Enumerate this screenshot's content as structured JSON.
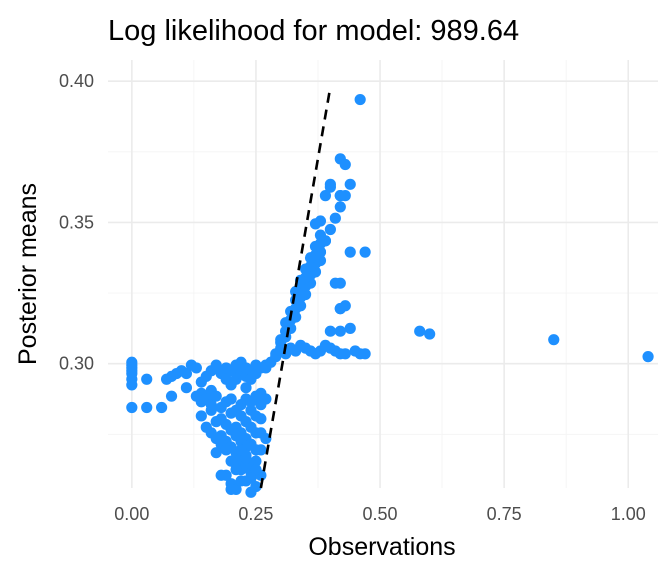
{
  "chart_data": {
    "type": "scatter",
    "title": "Log likelihood for model: 989.64",
    "xlabel": "Observations",
    "ylabel": "Posterior means",
    "xlim": [
      -0.048,
      1.06
    ],
    "ylim": [
      0.256,
      0.4075
    ],
    "x_ticks": [
      0.0,
      0.25,
      0.5,
      0.75,
      1.0
    ],
    "x_tick_labels": [
      "0.00",
      "0.25",
      "0.50",
      "0.75",
      "1.00"
    ],
    "y_ticks": [
      0.3,
      0.35,
      0.4
    ],
    "y_tick_labels": [
      "0.30",
      "0.35",
      "0.40"
    ],
    "grid": true,
    "point_color": "#1e90ff",
    "reference_line": {
      "style": "dashed",
      "color": "#000000",
      "from": [
        0.26,
        0.256
      ],
      "to": [
        0.4,
        0.398
      ]
    },
    "series": [
      {
        "name": "points",
        "x": [
          0.0,
          0.0,
          0.0,
          0.0,
          0.0,
          0.0,
          0.0,
          0.0,
          0.03,
          0.03,
          0.06,
          0.07,
          0.08,
          0.08,
          0.09,
          0.1,
          0.11,
          0.11,
          0.12,
          0.13,
          0.14,
          0.14,
          0.15,
          0.16,
          0.16,
          0.17,
          0.18,
          0.19,
          0.19,
          0.2,
          0.2,
          0.21,
          0.21,
          0.22,
          0.22,
          0.23,
          0.23,
          0.23,
          0.24,
          0.24,
          0.25,
          0.25,
          0.26,
          0.27,
          0.13,
          0.14,
          0.15,
          0.16,
          0.17,
          0.18,
          0.19,
          0.2,
          0.21,
          0.22,
          0.23,
          0.24,
          0.25,
          0.26,
          0.14,
          0.16,
          0.18,
          0.2,
          0.22,
          0.24,
          0.26,
          0.15,
          0.17,
          0.19,
          0.21,
          0.23,
          0.25,
          0.27,
          0.16,
          0.18,
          0.2,
          0.22,
          0.24,
          0.26,
          0.17,
          0.19,
          0.21,
          0.23,
          0.25,
          0.18,
          0.2,
          0.22,
          0.24,
          0.26,
          0.19,
          0.21,
          0.23,
          0.25,
          0.27,
          0.28,
          0.29,
          0.3,
          0.31,
          0.32,
          0.33,
          0.34,
          0.35,
          0.36,
          0.37,
          0.38,
          0.39,
          0.4,
          0.41,
          0.42,
          0.43,
          0.44,
          0.29,
          0.3,
          0.31,
          0.32,
          0.33,
          0.34,
          0.35,
          0.36,
          0.37,
          0.38,
          0.3,
          0.31,
          0.32,
          0.33,
          0.34,
          0.35,
          0.36,
          0.37,
          0.38,
          0.39,
          0.31,
          0.32,
          0.33,
          0.34,
          0.35,
          0.36,
          0.37,
          0.38,
          0.33,
          0.34,
          0.35,
          0.36,
          0.37,
          0.38,
          0.2,
          0.21,
          0.22,
          0.22,
          0.23,
          0.23,
          0.24,
          0.25,
          0.26,
          0.27,
          0.2,
          0.21,
          0.23,
          0.24,
          0.25,
          0.26,
          0.19,
          0.21,
          0.22,
          0.24,
          0.25,
          0.23,
          0.2,
          0.18,
          0.17,
          0.22,
          0.24,
          0.3,
          0.31,
          0.32,
          0.33,
          0.34,
          0.35,
          0.36,
          0.37,
          0.38,
          0.39,
          0.4,
          0.41,
          0.42,
          0.43,
          0.45,
          0.46,
          0.47,
          0.4,
          0.42,
          0.44,
          0.42,
          0.43,
          0.42,
          0.41,
          0.42,
          0.42,
          0.39,
          0.4,
          0.44,
          0.58,
          0.6,
          0.85,
          1.04
        ],
        "y": [
          0.3005,
          0.2995,
          0.2985,
          0.2975,
          0.2965,
          0.2945,
          0.2925,
          0.2845,
          0.2945,
          0.2845,
          0.2845,
          0.2945,
          0.2885,
          0.2955,
          0.2965,
          0.2975,
          0.2965,
          0.2915,
          0.2995,
          0.2985,
          0.2895,
          0.2935,
          0.2955,
          0.2905,
          0.2975,
          0.2995,
          0.2965,
          0.2945,
          0.2985,
          0.2925,
          0.2975,
          0.2945,
          0.2995,
          0.2965,
          0.3005,
          0.2955,
          0.2985,
          0.2915,
          0.2975,
          0.2945,
          0.2995,
          0.2965,
          0.2985,
          0.2995,
          0.2885,
          0.2865,
          0.2875,
          0.2855,
          0.2885,
          0.2845,
          0.2865,
          0.2875,
          0.2835,
          0.2855,
          0.2875,
          0.2865,
          0.2885,
          0.2895,
          0.2815,
          0.2835,
          0.2805,
          0.2825,
          0.2815,
          0.2835,
          0.2855,
          0.2775,
          0.2795,
          0.2785,
          0.2775,
          0.2795,
          0.2815,
          0.2875,
          0.2755,
          0.2745,
          0.2765,
          0.2755,
          0.2775,
          0.2805,
          0.2735,
          0.2725,
          0.2745,
          0.2735,
          0.2755,
          0.2715,
          0.2705,
          0.2725,
          0.2715,
          0.2755,
          0.2695,
          0.2685,
          0.2705,
          0.2695,
          0.2985,
          0.3005,
          0.3035,
          0.3075,
          0.3115,
          0.3155,
          0.3195,
          0.3235,
          0.3275,
          0.3315,
          0.3355,
          0.3395,
          0.3435,
          0.3475,
          0.3515,
          0.3555,
          0.3595,
          0.3635,
          0.3025,
          0.3055,
          0.3095,
          0.3125,
          0.3165,
          0.3205,
          0.3245,
          0.3285,
          0.3325,
          0.3365,
          0.3085,
          0.3115,
          0.3155,
          0.3195,
          0.3235,
          0.3275,
          0.3315,
          0.3355,
          0.3395,
          0.3435,
          0.3145,
          0.3185,
          0.3225,
          0.3265,
          0.3305,
          0.3345,
          0.3385,
          0.3425,
          0.3255,
          0.3295,
          0.3335,
          0.3375,
          0.3415,
          0.3455,
          0.2655,
          0.2645,
          0.2625,
          0.2665,
          0.2635,
          0.2675,
          0.2615,
          0.2655,
          0.2695,
          0.2735,
          0.2575,
          0.2555,
          0.2585,
          0.2545,
          0.2565,
          0.2605,
          0.2605,
          0.2625,
          0.2585,
          0.2645,
          0.2625,
          0.2665,
          0.2555,
          0.2605,
          0.2685,
          0.2695,
          0.2595,
          0.3045,
          0.3035,
          0.3055,
          0.3045,
          0.3065,
          0.3055,
          0.3045,
          0.3035,
          0.3045,
          0.3065,
          0.3055,
          0.3045,
          0.3035,
          0.3035,
          0.3045,
          0.3035,
          0.3035,
          0.3115,
          0.3115,
          0.3125,
          0.3195,
          0.3205,
          0.3285,
          0.3285,
          0.3195,
          0.3595,
          0.3595,
          0.3625,
          0.3395,
          0.3115,
          0.3105,
          0.3085,
          0.3025
        ]
      },
      {
        "name": "outliers-top",
        "x": [
          0.42,
          0.43,
          0.4,
          0.42,
          0.46,
          0.38,
          0.37,
          0.47
        ],
        "y": [
          0.3725,
          0.3705,
          0.3635,
          0.3595,
          0.3935,
          0.3505,
          0.3495,
          0.3395
        ]
      }
    ]
  }
}
